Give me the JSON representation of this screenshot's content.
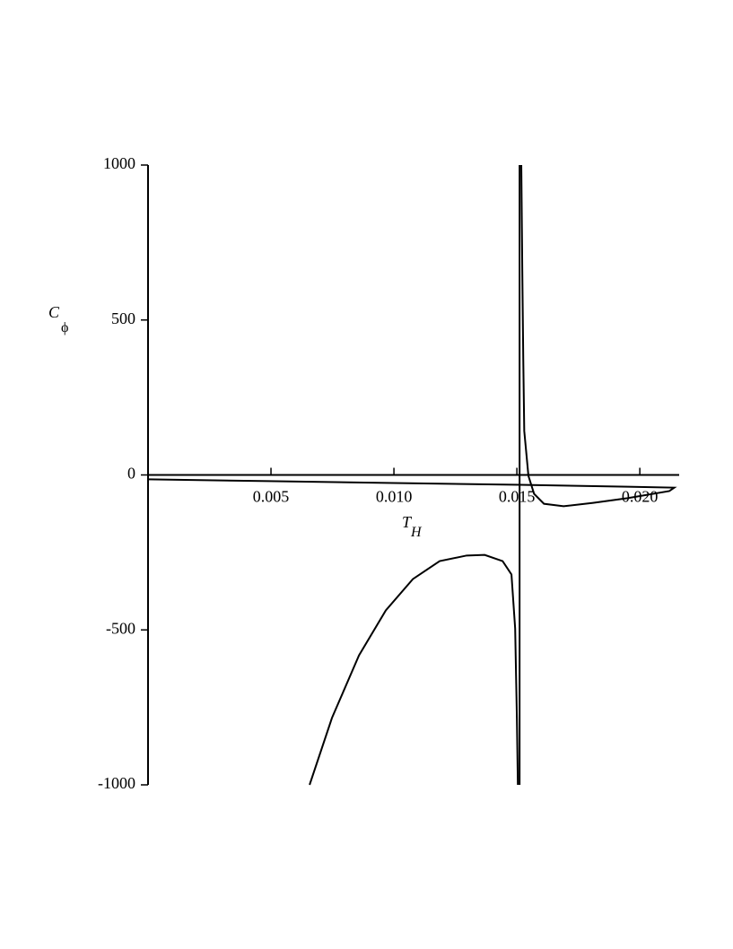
{
  "chart_data": {
    "type": "line",
    "xlabel": {
      "main": "T",
      "sub": "H"
    },
    "ylabel": {
      "main": "C",
      "sub": "ϕ"
    },
    "xlim": [
      0,
      0.0216
    ],
    "ylim": [
      -1000,
      1000
    ],
    "xticks": [
      {
        "value": 0.005,
        "label": "0.005"
      },
      {
        "value": 0.01,
        "label": "0.010"
      },
      {
        "value": 0.015,
        "label": "0.015"
      },
      {
        "value": 0.02,
        "label": "0.020"
      }
    ],
    "yticks": [
      -1000,
      -500,
      0,
      500,
      1000
    ],
    "series": [
      {
        "color": "#000000",
        "x": [
          0,
          0.0049,
          0.01,
          0.01515,
          0.0195,
          0.0214,
          0.0212,
          0.0195,
          0.0181,
          0.0169,
          0.0161,
          0.0157,
          0.01547,
          0.0153,
          0.01526,
          0.01522,
          0.01518
        ],
        "values": [
          -14,
          -20,
          -26,
          -32,
          -38,
          -41,
          -52,
          -75,
          -90,
          -101,
          -93,
          -61,
          -3,
          142,
          373,
          663,
          1000
        ]
      },
      {
        "color": "#000000",
        "x": [
          0.00657,
          0.00748,
          0.00858,
          0.00967,
          0.01077,
          0.01186,
          0.01296,
          0.01369,
          0.01442,
          0.01478,
          0.01493,
          0.015,
          0.01504
        ],
        "values": [
          -1000,
          -784,
          -582,
          -437,
          -336,
          -278,
          -260,
          -258,
          -278,
          -321,
          -495,
          -784,
          -1000
        ]
      },
      {
        "color": "#000000",
        "x": [
          0.01511,
          0.01511
        ],
        "values": [
          1000,
          -1000
        ]
      }
    ]
  }
}
